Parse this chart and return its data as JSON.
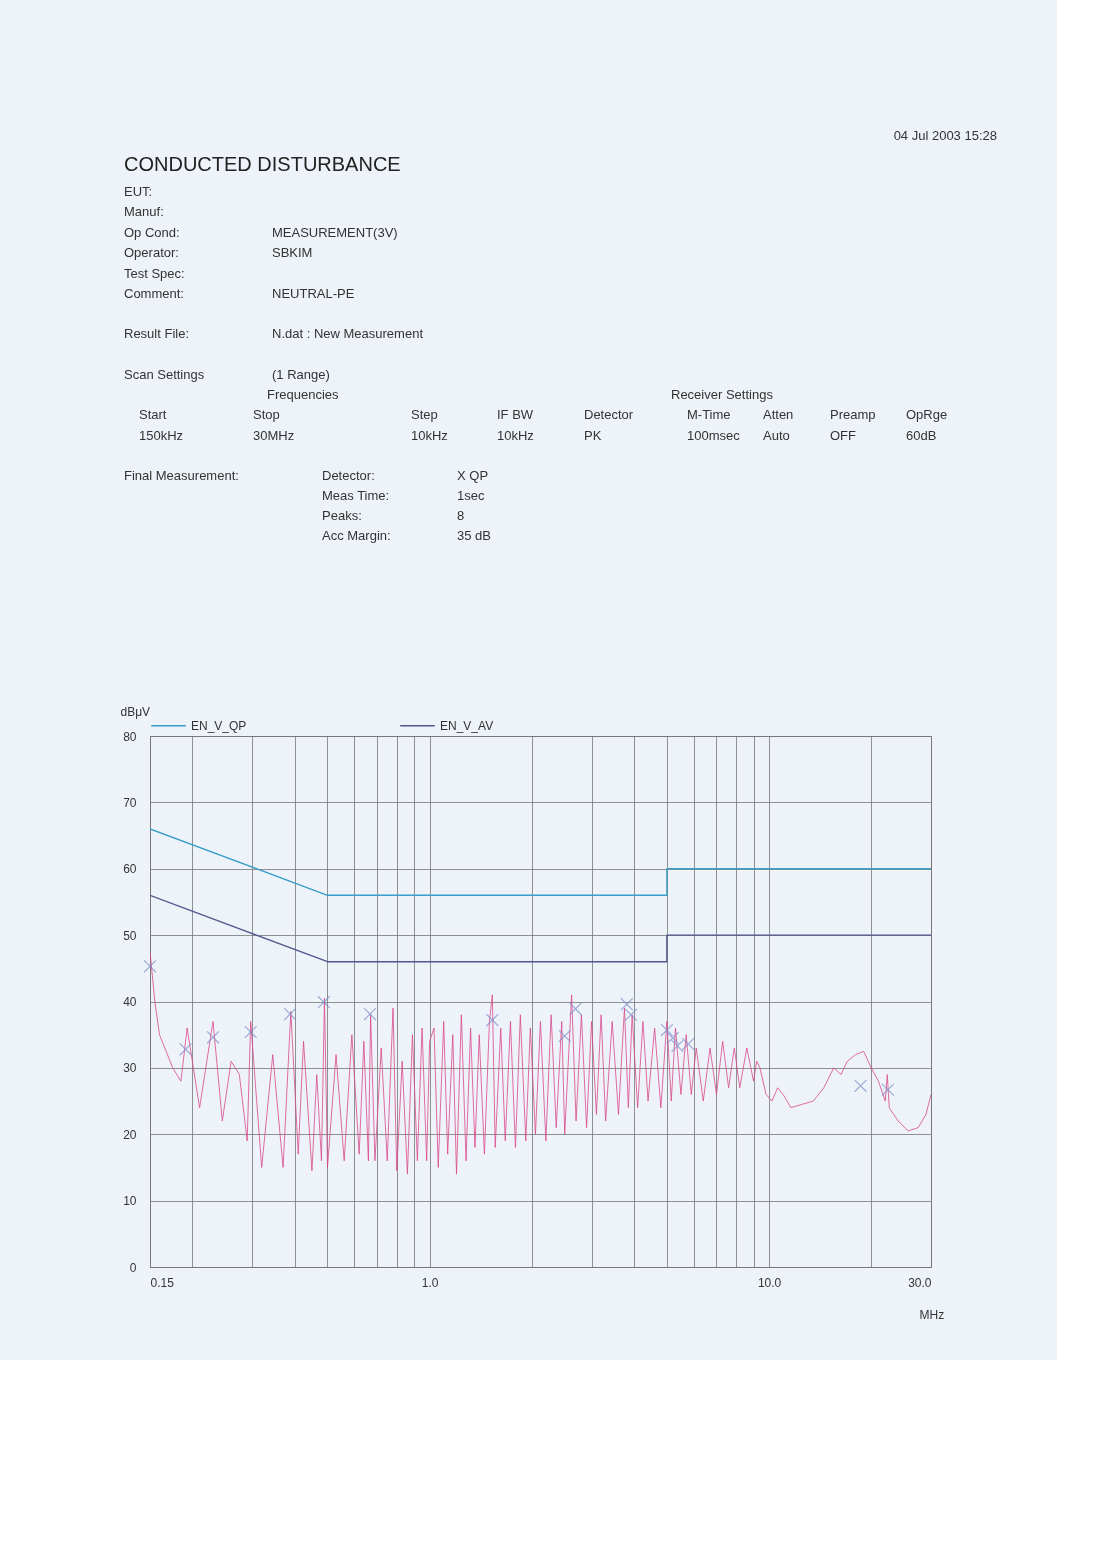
{
  "chart_data": {
    "type": "line",
    "title": "CONDUCTED DISTURBANCE",
    "xlabel": "MHz",
    "ylabel": "dBμV",
    "xlim": [
      0.15,
      30
    ],
    "ylim": [
      0,
      80
    ],
    "log": "x",
    "grid": true,
    "legend": "top",
    "xticks": [
      0.15,
      {
        "value": 0.2,
        "label": null
      },
      {
        "value": 0.3,
        "label": null
      },
      {
        "value": 0.4,
        "label": null
      },
      {
        "value": 0.5,
        "label": null
      },
      {
        "value": 0.6,
        "label": null
      },
      {
        "value": 0.7,
        "label": null
      },
      {
        "value": 0.8,
        "label": null
      },
      {
        "value": 0.9,
        "label": null
      },
      {
        "value": 1,
        "label": "1.0"
      },
      {
        "value": 2,
        "label": null
      },
      {
        "value": 3,
        "label": null
      },
      {
        "value": 4,
        "label": null
      },
      {
        "value": 5,
        "label": null
      },
      {
        "value": 6,
        "label": null
      },
      {
        "value": 7,
        "label": null
      },
      {
        "value": 8,
        "label": null
      },
      {
        "value": 9,
        "label": null
      },
      {
        "value": 10,
        "label": "10.0"
      },
      {
        "value": 20,
        "label": null
      },
      {
        "value": 30,
        "label": "30.0"
      }
    ],
    "yticks": [
      0,
      10,
      20,
      30,
      40,
      50,
      60,
      70,
      80
    ],
    "series": [
      {
        "name": "EN_V_QP",
        "color": "#3a9cc8",
        "x": [
          0.15,
          0.5,
          5,
          5,
          30
        ],
        "values": [
          66,
          56,
          56,
          60,
          60
        ]
      },
      {
        "name": "EN_V_AV",
        "color": "#55558f",
        "x": [
          0.15,
          0.5,
          5,
          5,
          30
        ],
        "values": [
          56,
          46,
          46,
          50,
          50
        ]
      },
      {
        "color": "#d9478a",
        "x": [
          0.15,
          0.155,
          0.16,
          0.175,
          0.185,
          0.193,
          0.21,
          0.23,
          0.245,
          0.26,
          0.275,
          0.29,
          0.297,
          0.32,
          0.345,
          0.37,
          0.39,
          0.41,
          0.425,
          0.45,
          0.465,
          0.48,
          0.49,
          0.5,
          0.53,
          0.56,
          0.59,
          0.62,
          0.64,
          0.66,
          0.67,
          0.69,
          0.72,
          0.75,
          0.78,
          0.8,
          0.83,
          0.86,
          0.89,
          0.92,
          0.95,
          0.98,
          1.0,
          1.03,
          1.06,
          1.1,
          1.13,
          1.17,
          1.2,
          1.24,
          1.28,
          1.32,
          1.36,
          1.4,
          1.45,
          1.5,
          1.53,
          1.56,
          1.62,
          1.67,
          1.73,
          1.79,
          1.85,
          1.92,
          1.98,
          2.05,
          2.12,
          2.2,
          2.28,
          2.36,
          2.45,
          2.5,
          2.62,
          2.7,
          2.8,
          2.9,
          3.0,
          3.1,
          3.2,
          3.3,
          3.45,
          3.6,
          3.75,
          3.85,
          3.95,
          4.1,
          4.25,
          4.4,
          4.6,
          4.8,
          5.0,
          5.15,
          5.3,
          5.5,
          5.7,
          5.9,
          6.1,
          6.4,
          6.7,
          7.0,
          7.3,
          7.6,
          7.9,
          8.2,
          8.6,
          9.0,
          9.2,
          9.4,
          9.8,
          10.2,
          10.6,
          11.0,
          11.6,
          12.5,
          13.5,
          14.5,
          15.5,
          16.3,
          17.0,
          18.0,
          19.0,
          20.0,
          21.0,
          22.0,
          22.3,
          22.6,
          24.0,
          25.7,
          27.5,
          29.0,
          30.0
        ],
        "values": [
          47.5,
          40,
          35,
          30,
          28,
          36,
          24,
          37,
          22,
          31,
          29,
          19,
          37,
          15,
          32,
          15,
          38.5,
          17,
          34,
          14.5,
          29,
          16,
          40.5,
          15,
          32,
          16,
          35,
          17,
          34,
          16,
          38,
          16,
          33,
          16,
          39,
          14.5,
          31,
          14,
          35,
          16,
          36,
          16,
          34,
          36,
          15,
          37,
          17,
          35,
          14,
          38,
          16,
          36,
          18,
          35,
          17,
          37,
          41,
          18,
          36,
          19,
          37,
          18,
          38,
          19,
          36,
          20,
          37,
          19,
          38,
          21,
          37,
          20,
          41,
          22,
          38,
          21,
          37,
          23,
          38,
          22,
          37,
          23,
          39,
          24,
          38,
          24,
          37,
          25,
          36,
          24,
          37,
          25,
          36,
          26,
          35,
          26,
          33,
          25,
          33,
          26,
          34,
          27,
          33,
          27,
          33,
          28,
          31,
          30,
          26,
          25,
          27,
          26,
          24,
          24.5,
          25,
          27,
          30,
          29,
          31,
          32,
          32.5,
          30,
          28,
          25,
          29,
          24,
          22,
          20.5,
          21,
          23,
          26
        ]
      },
      {
        "type": "scatter",
        "marker": "cross",
        "color": "#7a8cc8",
        "x": [
          0.15,
          0.191,
          0.23,
          0.297,
          0.388,
          0.488,
          0.667,
          1.53,
          2.5,
          2.69,
          3.81,
          3.92,
          5.0,
          5.2,
          5.37,
          5.78,
          18.6,
          22.4
        ],
        "values": [
          45.3,
          32.8,
          34.6,
          35.4,
          38.1,
          39.9,
          38.1,
          37.2,
          34.8,
          38.9,
          39.6,
          38.0,
          35.7,
          34.5,
          33.3,
          33.6,
          27.3,
          26.7
        ]
      }
    ],
    "annotations": [
      "04 Jul 2003   15:28",
      "EUT:",
      "Manuf:",
      "Op Cond:",
      "MEASUREMENT(3V)",
      "Operator:",
      "SBKIM",
      "Test Spec:",
      "Comment:",
      "NEUTRAL-PE",
      "Result File:",
      "N.dat : New Measurement",
      "Scan Settings",
      "(1  Range)",
      "Frequencies",
      "Receiver Settings",
      "Start",
      "Stop",
      "Step",
      "IF BW",
      "Detector",
      "M-Time",
      "Atten",
      "Preamp",
      "OpRge",
      "150kHz",
      "30MHz",
      "10kHz",
      "10kHz",
      "PK",
      "100msec",
      "Auto",
      "OFF",
      "60dB",
      "Final Measurement:",
      "Detector:",
      "X QP",
      "Meas Time:",
      "1sec",
      "Peaks:",
      "8",
      "Acc Margin:",
      "35 dB"
    ]
  }
}
